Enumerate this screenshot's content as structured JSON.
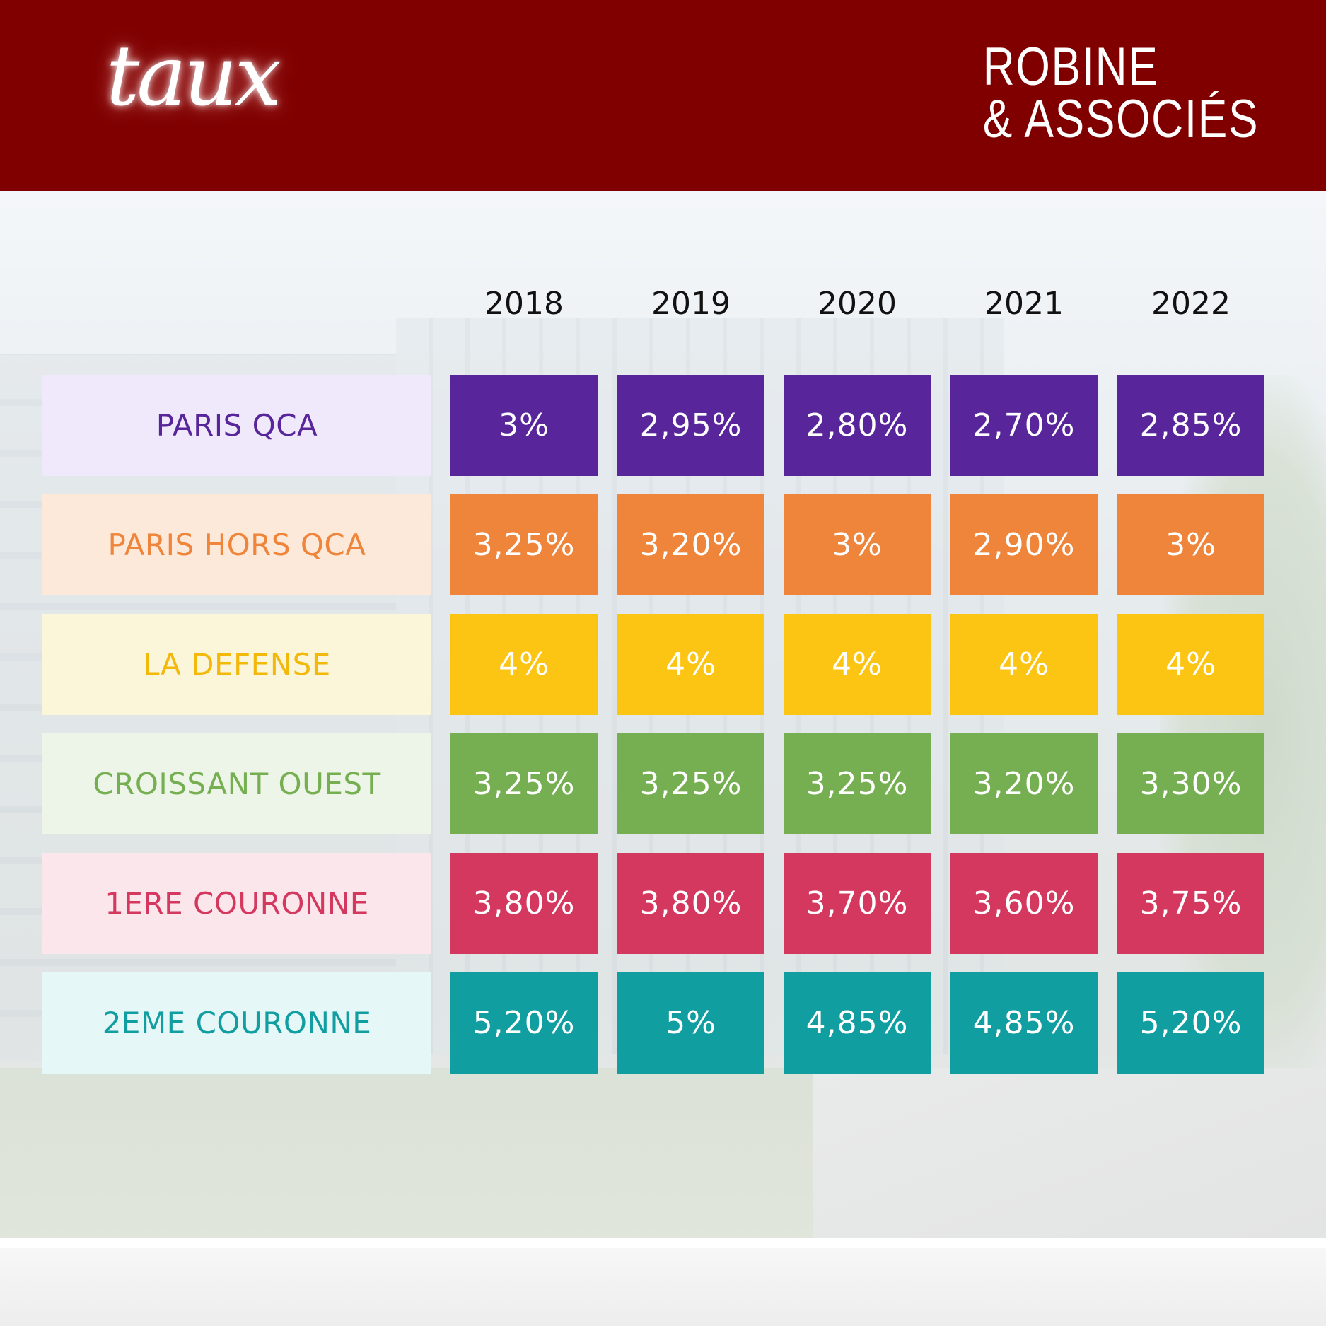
{
  "header": {
    "script_title": "taux",
    "brand_line1": "ROBINE",
    "brand_line2": "& ASSOCIÉS"
  },
  "colors": {
    "header_bg": "#800000",
    "rows": [
      {
        "cell": "#58269a",
        "label_bg": "#f0e9fb",
        "label_text": "#58269a"
      },
      {
        "cell": "#ee853a",
        "label_bg": "#fde9d9",
        "label_text": "#ee853a"
      },
      {
        "cell": "#fdc513",
        "label_bg": "#fbf6da",
        "label_text": "#f2b90a"
      },
      {
        "cell": "#76af51",
        "label_bg": "#edf5e8",
        "label_text": "#76af51"
      },
      {
        "cell": "#d5385f",
        "label_bg": "#fbe6ec",
        "label_text": "#d5385f"
      },
      {
        "cell": "#119ea1",
        "label_bg": "#e6f7f8",
        "label_text": "#119ea1"
      }
    ]
  },
  "chart_data": {
    "type": "table",
    "columns": [
      "2018",
      "2019",
      "2020",
      "2021",
      "2022"
    ],
    "rows": [
      {
        "label": "PARIS QCA",
        "values": [
          "3%",
          "2,95%",
          "2,80%",
          "2,70%",
          "2,85%"
        ]
      },
      {
        "label": "PARIS HORS QCA",
        "values": [
          "3,25%",
          "3,20%",
          "3%",
          "2,90%",
          "3%"
        ]
      },
      {
        "label": "LA DEFENSE",
        "values": [
          "4%",
          "4%",
          "4%",
          "4%",
          "4%"
        ]
      },
      {
        "label": "CROISSANT OUEST",
        "values": [
          "3,25%",
          "3,25%",
          "3,25%",
          "3,20%",
          "3,30%"
        ]
      },
      {
        "label": "1ERE COURONNE",
        "values": [
          "3,80%",
          "3,80%",
          "3,70%",
          "3,60%",
          "3,75%"
        ]
      },
      {
        "label": "2EME COURONNE",
        "values": [
          "5,20%",
          "5%",
          "4,85%",
          "4,85%",
          "5,20%"
        ]
      }
    ]
  }
}
